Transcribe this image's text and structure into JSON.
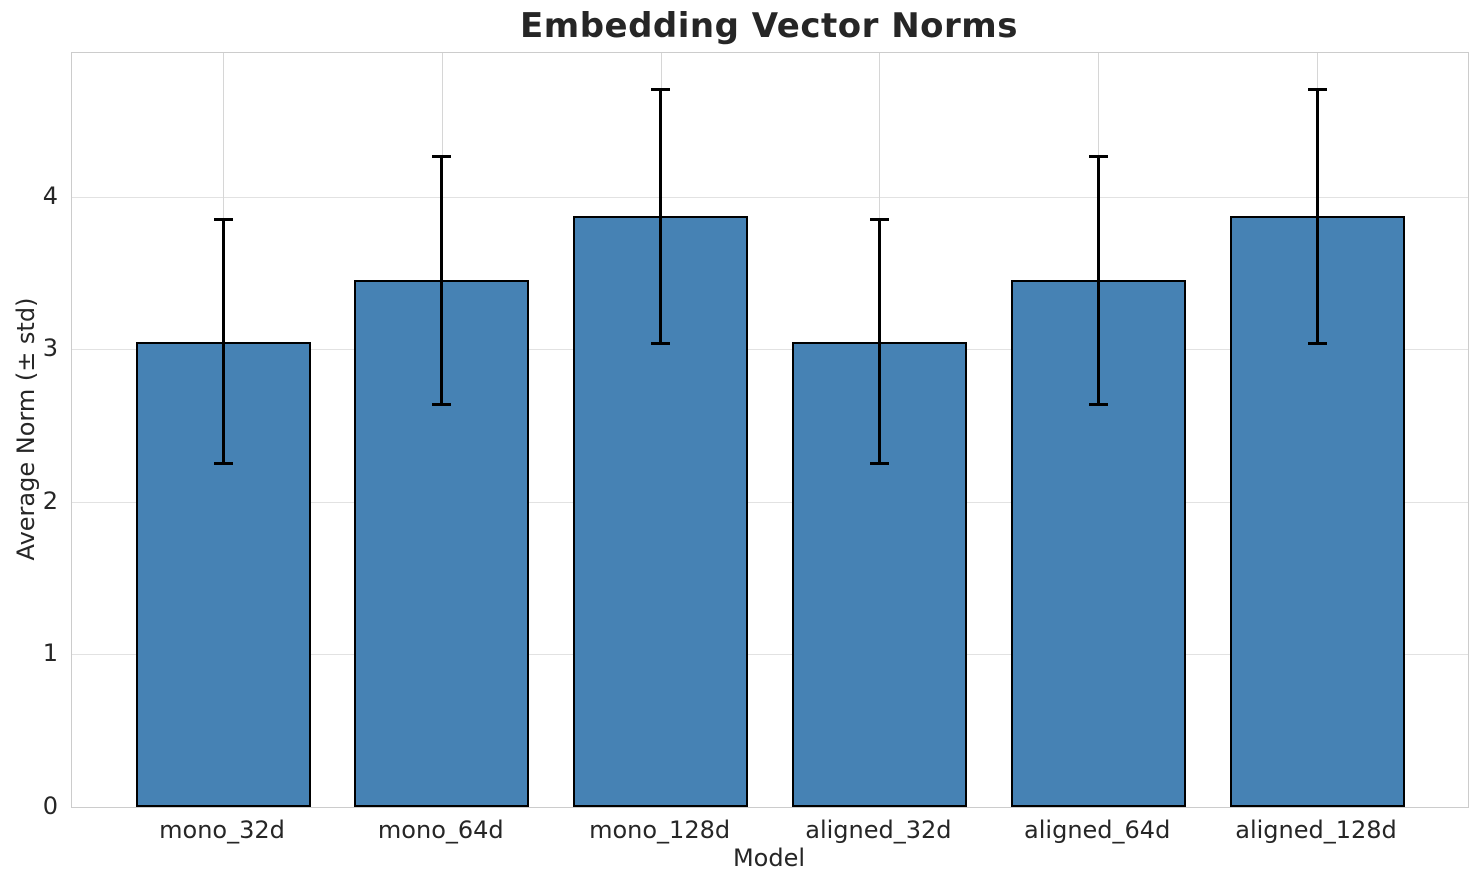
{
  "chart_data": {
    "type": "bar",
    "title": "Embedding Vector Norms",
    "xlabel": "Model",
    "ylabel": "Average Norm (± std)",
    "categories": [
      "mono_32d",
      "mono_64d",
      "mono_128d",
      "aligned_32d",
      "aligned_64d",
      "aligned_128d"
    ],
    "values": [
      3.05,
      3.45,
      3.87,
      3.05,
      3.45,
      3.87
    ],
    "errors": [
      0.8,
      0.81,
      0.83,
      0.8,
      0.81,
      0.83
    ],
    "yticks": [
      0,
      1,
      2,
      3,
      4
    ],
    "ylim": [
      0,
      4.94
    ],
    "xlim": [
      -0.69,
      5.69
    ],
    "bar_width": 0.8,
    "grid": true,
    "legend": false,
    "colors": {
      "bar_fill": "#4682b4",
      "bar_edge": "#000000",
      "error_bar": "#000000",
      "grid_line": "#dddddd",
      "spine": "#cccccc",
      "text": "#262626",
      "background": "#ffffff"
    }
  }
}
